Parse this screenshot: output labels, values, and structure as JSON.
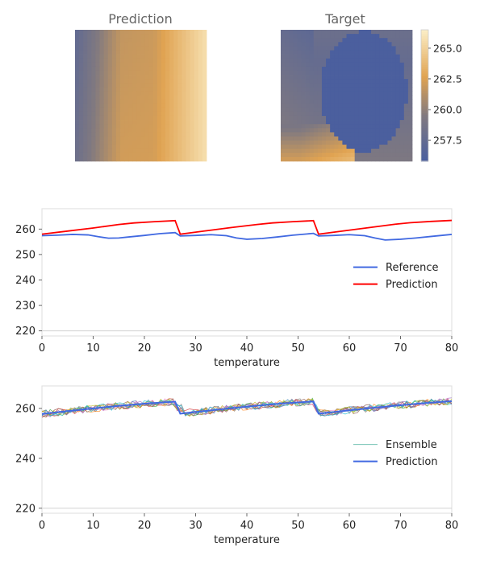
{
  "chart_data": [
    {
      "type": "heatmap",
      "title": "Prediction",
      "grid_cols": 32,
      "grid_rows": 32,
      "value_range": [
        255.8,
        266.5
      ],
      "description_of_values": "smooth field ~257.5 at left edge rising to ~262 near column 0.35-0.6 and ~265.5 at right edge"
    },
    {
      "type": "heatmap",
      "title": "Target",
      "grid_cols": 32,
      "grid_rows": 32,
      "value_range": [
        255.8,
        266.5
      ],
      "colorbar_ticks": [
        257.5,
        260.0,
        262.5,
        265.0
      ],
      "colorbar_tick_labels": [
        "257.5",
        "260.0",
        "262.5",
        "265.0"
      ]
    },
    {
      "type": "line",
      "xlabel": "temperature",
      "ylabel": "",
      "xlim": [
        0,
        80
      ],
      "ylim": [
        218,
        268
      ],
      "xticks": [
        0,
        10,
        20,
        30,
        40,
        50,
        60,
        70,
        80
      ],
      "yticks": [
        220,
        230,
        240,
        250,
        260
      ],
      "legend": "center-right",
      "series": [
        {
          "name": "Reference",
          "color": "#4169e1",
          "points": [
            [
              0,
              257.4
            ],
            [
              3,
              257.6
            ],
            [
              6,
              257.9
            ],
            [
              9,
              257.7
            ],
            [
              11,
              257.0
            ],
            [
              13,
              256.4
            ],
            [
              15,
              256.5
            ],
            [
              17,
              256.9
            ],
            [
              20,
              257.5
            ],
            [
              23,
              258.2
            ],
            [
              26,
              258.6
            ],
            [
              27,
              257.3
            ],
            [
              30,
              257.5
            ],
            [
              33,
              257.8
            ],
            [
              36,
              257.4
            ],
            [
              38,
              256.5
            ],
            [
              40,
              256.0
            ],
            [
              43,
              256.3
            ],
            [
              46,
              256.9
            ],
            [
              49,
              257.6
            ],
            [
              53,
              258.3
            ],
            [
              54,
              257.3
            ],
            [
              57,
              257.5
            ],
            [
              60,
              257.8
            ],
            [
              63,
              257.4
            ],
            [
              65,
              256.5
            ],
            [
              67,
              255.7
            ],
            [
              70,
              256.0
            ],
            [
              73,
              256.5
            ],
            [
              76,
              257.1
            ],
            [
              80,
              257.9
            ]
          ]
        },
        {
          "name": "Prediction",
          "color": "#ff0000",
          "points": [
            [
              0,
              258.0
            ],
            [
              5,
              259.2
            ],
            [
              10,
              260.4
            ],
            [
              15,
              261.8
            ],
            [
              18,
              262.4
            ],
            [
              22,
              262.9
            ],
            [
              26,
              263.3
            ],
            [
              27,
              258.0
            ],
            [
              32,
              259.3
            ],
            [
              37,
              260.6
            ],
            [
              42,
              261.8
            ],
            [
              45,
              262.4
            ],
            [
              49,
              262.9
            ],
            [
              53,
              263.3
            ],
            [
              54,
              258.0
            ],
            [
              59,
              259.3
            ],
            [
              64,
              260.6
            ],
            [
              69,
              261.9
            ],
            [
              72,
              262.5
            ],
            [
              76,
              263.0
            ],
            [
              80,
              263.4
            ]
          ]
        }
      ]
    },
    {
      "type": "line",
      "xlabel": "temperature",
      "ylabel": "",
      "xlim": [
        0,
        80
      ],
      "ylim": [
        218,
        269
      ],
      "xticks": [
        0,
        10,
        20,
        30,
        40,
        50,
        60,
        70,
        80
      ],
      "yticks": [
        220,
        240,
        260
      ],
      "legend": "center-right",
      "series": [
        {
          "name": "Ensemble",
          "style": "thin lines, 10 noisy members around the prediction (noise approx ±1.5)",
          "colors": [
            "#1f77b4",
            "#ff7f0e",
            "#2ca02c",
            "#d62728",
            "#9467bd",
            "#8c564b",
            "#e377c2",
            "#7f7f7f",
            "#bcbd22",
            "#17becf"
          ],
          "member_count": 10,
          "noise_amplitude": 1.5
        },
        {
          "name": "Prediction",
          "color": "#4169e1",
          "points": [
            [
              0,
              257.8
            ],
            [
              5,
              258.9
            ],
            [
              10,
              260.0
            ],
            [
              15,
              261.0
            ],
            [
              20,
              261.9
            ],
            [
              26,
              262.7
            ],
            [
              27,
              257.9
            ],
            [
              32,
              259.0
            ],
            [
              37,
              260.1
            ],
            [
              42,
              261.1
            ],
            [
              47,
              262.0
            ],
            [
              53,
              262.8
            ],
            [
              54,
              257.9
            ],
            [
              59,
              259.0
            ],
            [
              64,
              260.1
            ],
            [
              69,
              261.1
            ],
            [
              74,
              262.0
            ],
            [
              80,
              262.9
            ]
          ]
        }
      ]
    }
  ]
}
